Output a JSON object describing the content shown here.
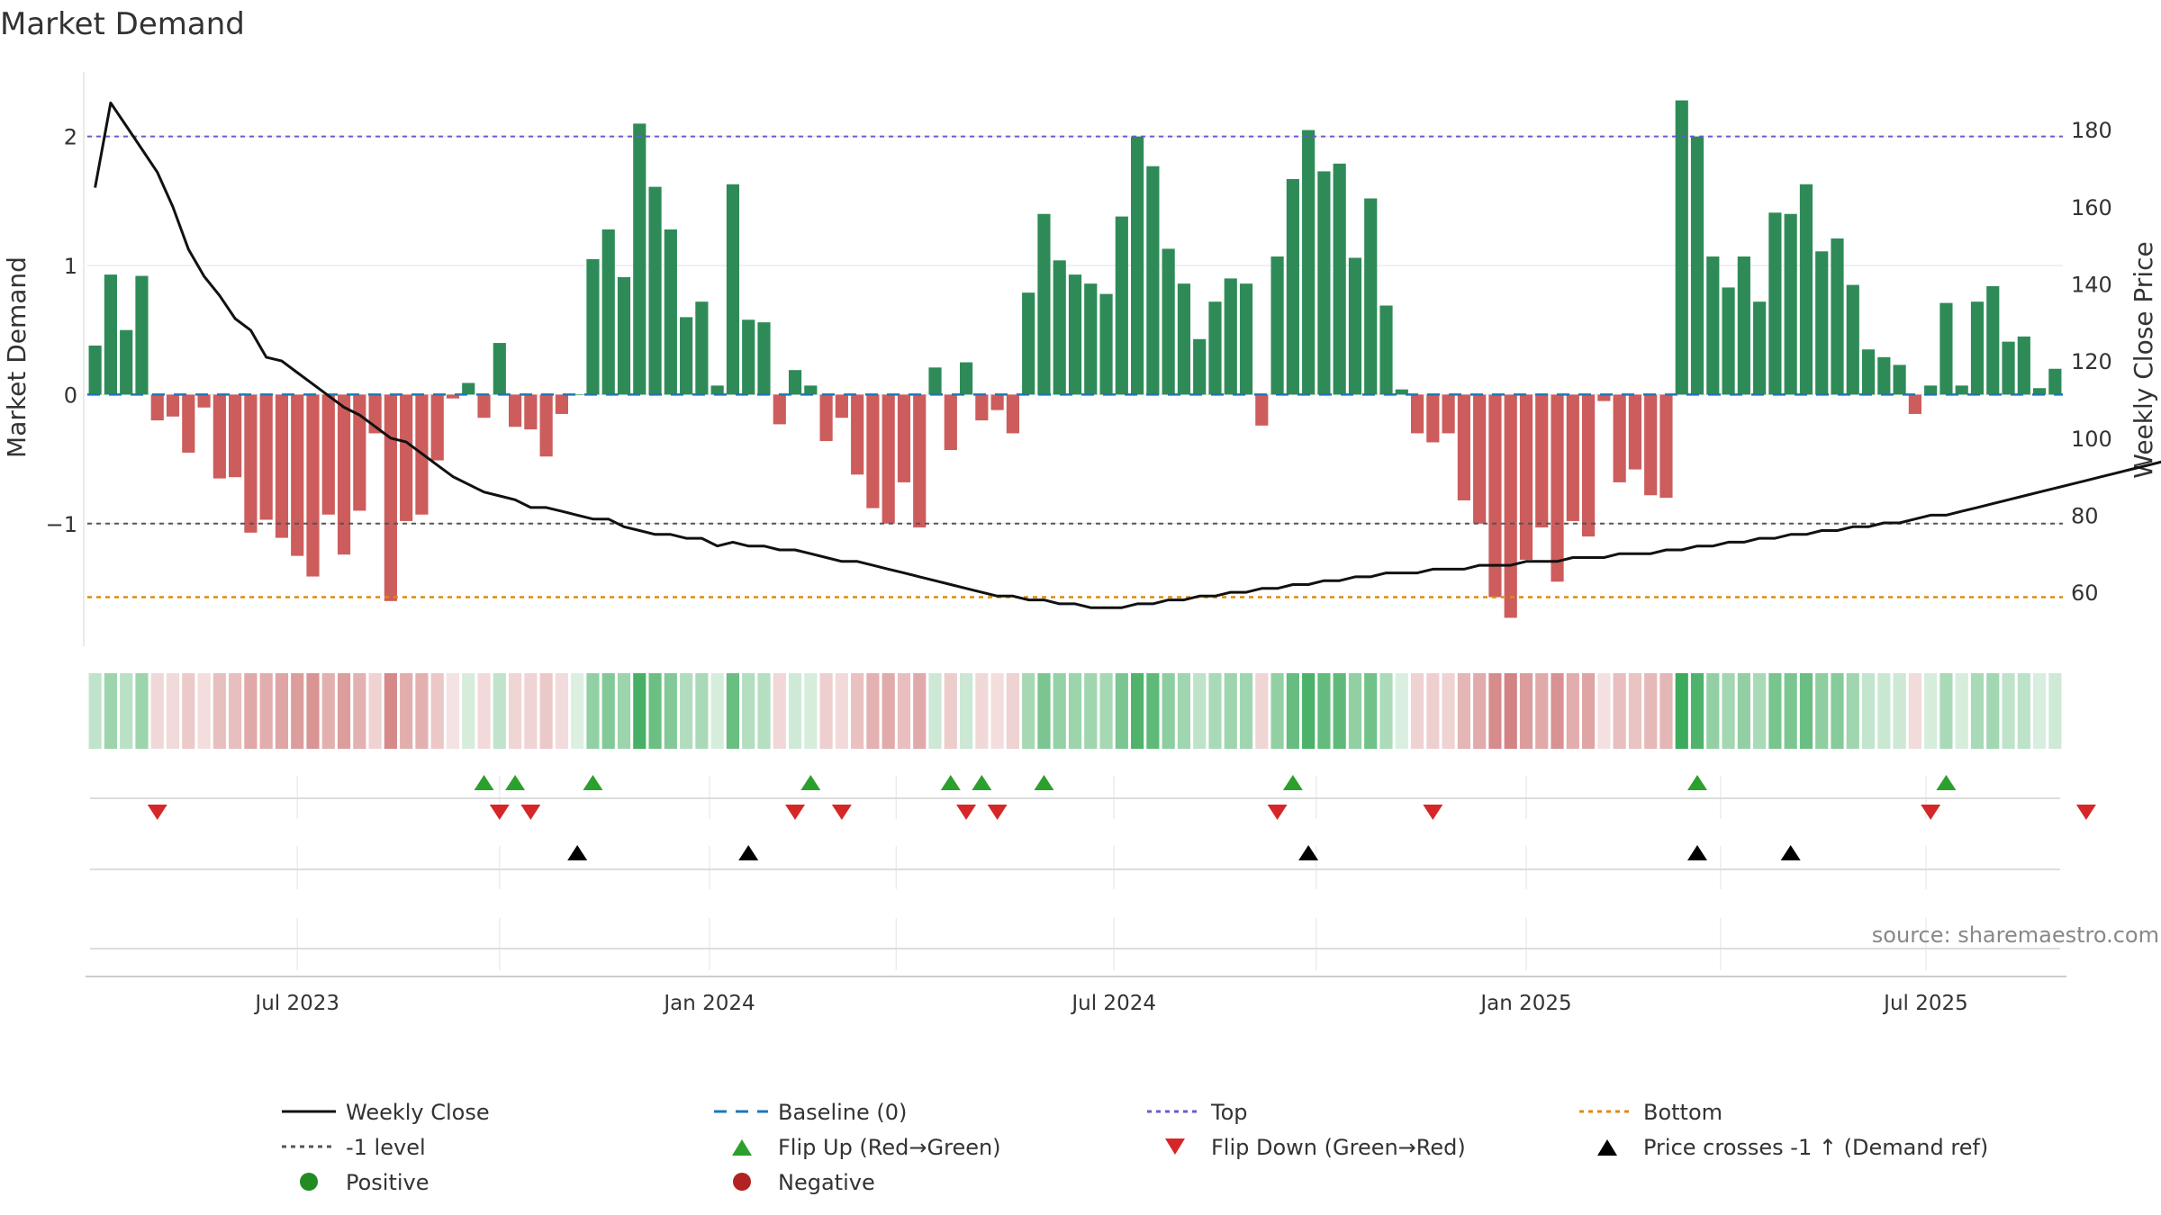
{
  "chart_data": {
    "type": "bar",
    "title": "Market Demand",
    "ylabel_left": "Market Demand",
    "ylabel_right": "Weekly Close Price",
    "left_ylim": [
      -1.95,
      2.5
    ],
    "left_yticks": [
      2,
      1,
      0,
      -1
    ],
    "left_ytick_labels": [
      "2",
      "1",
      "0",
      "−1"
    ],
    "right_ylim": [
      46,
      195
    ],
    "right_yticks": [
      180,
      160,
      140,
      120,
      100,
      80,
      60
    ],
    "x_tick_labels": [
      {
        "label": "Jul 2023",
        "week": 13
      },
      {
        "label": "Jan 2024",
        "week": 39.5
      },
      {
        "label": "Jul 2024",
        "week": 65.5
      },
      {
        "label": "Jan 2025",
        "week": 92
      },
      {
        "label": "Jul 2025",
        "week": 117.7
      }
    ],
    "x_minor_grid_weeks": [
      26,
      51.5,
      78.5,
      104.5
    ],
    "reference_lines": {
      "top": 2.0,
      "level": -1.0,
      "bottom": -1.57,
      "baseline": 0
    },
    "demand": [
      0.38,
      0.93,
      0.5,
      0.92,
      -0.2,
      -0.17,
      -0.45,
      -0.1,
      -0.65,
      -0.64,
      -1.07,
      -0.97,
      -1.11,
      -1.25,
      -1.41,
      -0.93,
      -1.24,
      -0.9,
      -0.3,
      -1.6,
      -0.98,
      -0.93,
      -0.51,
      -0.03,
      0.09,
      -0.18,
      0.4,
      -0.25,
      -0.27,
      -0.48,
      -0.15,
      0.0,
      1.05,
      1.28,
      0.91,
      2.1,
      1.61,
      1.28,
      0.6,
      0.72,
      0.07,
      1.63,
      0.58,
      0.56,
      -0.23,
      0.19,
      0.07,
      -0.36,
      -0.18,
      -0.62,
      -0.88,
      -1.0,
      -0.68,
      -1.03,
      0.21,
      -0.43,
      0.25,
      -0.2,
      -0.12,
      -0.3,
      0.79,
      1.4,
      1.04,
      0.93,
      0.86,
      0.78,
      1.38,
      2.0,
      1.77,
      1.13,
      0.86,
      0.43,
      0.72,
      0.9,
      0.86,
      -0.24,
      1.07,
      1.67,
      2.05,
      1.73,
      1.79,
      1.06,
      1.52,
      0.69,
      0.04,
      -0.3,
      -0.37,
      -0.3,
      -0.82,
      -1.0,
      -1.57,
      -1.73,
      -1.28,
      -1.03,
      -1.45,
      -0.98,
      -1.1,
      -0.05,
      -0.68,
      -0.58,
      -0.78,
      -0.8,
      2.28,
      2.0,
      1.07,
      0.83,
      1.07,
      0.72,
      1.41,
      1.4,
      1.63,
      1.11,
      1.21,
      0.85,
      0.35,
      0.29,
      0.23,
      -0.15,
      0.07,
      0.71,
      0.07,
      0.72,
      0.84,
      0.41,
      0.45,
      0.05,
      0.2
    ],
    "weekly_close": [
      165,
      187,
      181,
      175,
      169,
      160,
      149,
      142,
      137,
      131,
      128,
      121,
      120,
      117,
      114,
      111,
      108,
      106,
      103,
      100,
      99,
      96,
      93,
      90,
      88,
      86,
      85,
      84,
      82,
      82,
      81,
      80,
      79,
      79,
      77,
      76,
      75,
      75,
      74,
      74,
      72,
      73,
      72,
      72,
      71,
      71,
      70,
      69,
      68,
      68,
      67,
      66,
      65,
      64,
      63,
      62,
      61,
      60,
      59,
      59,
      58,
      58,
      57,
      57,
      56,
      56,
      56,
      57,
      57,
      58,
      58,
      59,
      59,
      60,
      60,
      61,
      61,
      62,
      62,
      63,
      63,
      64,
      64,
      65,
      65,
      65,
      66,
      66,
      66,
      67,
      67,
      67,
      68,
      68,
      68,
      69,
      69,
      69,
      70,
      70,
      70,
      71,
      71,
      72,
      72,
      73,
      73,
      74,
      74,
      75,
      75,
      76,
      76,
      77,
      77,
      78,
      78,
      79,
      80,
      80,
      81,
      82,
      83,
      84,
      85,
      86,
      87,
      88,
      89,
      90,
      91,
      92,
      93,
      94,
      95
    ],
    "flip_up_weeks": [
      25,
      27,
      32,
      46,
      55,
      57,
      61,
      77,
      103,
      119
    ],
    "flip_down_weeks": [
      4,
      26,
      28,
      45,
      48,
      56,
      58,
      76,
      86,
      118,
      128
    ],
    "price_cross_weeks": [
      31,
      42,
      78,
      103,
      109
    ],
    "source": "source: sharemaestro.com"
  },
  "legend": {
    "weekly_close": "Weekly Close",
    "baseline": "Baseline (0)",
    "top": "Top",
    "bottom": "Bottom",
    "level": "-1 level",
    "flip_up": "Flip Up (Red→Green)",
    "flip_down": "Flip Down (Green→Red)",
    "price_cross": "Price crosses -1 ↑ (Demand ref)",
    "positive": "Positive",
    "negative": "Negative"
  },
  "colors": {
    "positive_bar": "#2e8b57",
    "negative_bar": "#cd5c5c",
    "price_line": "#111111",
    "top_line": "#6a5acd",
    "bottom_line": "#e08a10",
    "level_line": "#555555",
    "baseline": "#1f77b4",
    "flip_up": "#2ca02c",
    "flip_down": "#d62728",
    "price_cross": "#000000",
    "positive_dot": "#228b22",
    "negative_dot": "#b22222"
  }
}
